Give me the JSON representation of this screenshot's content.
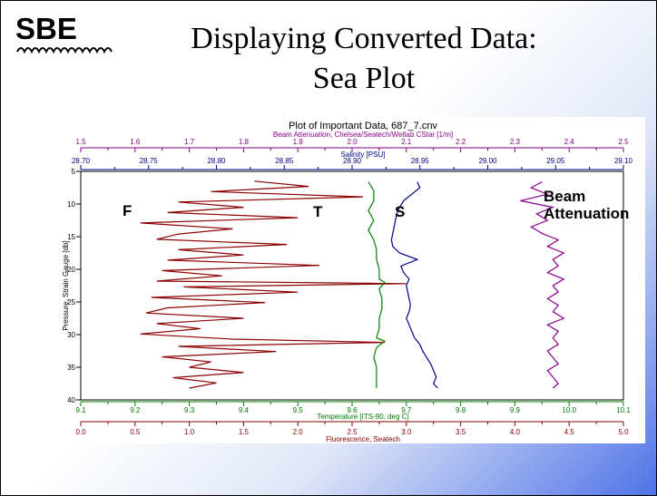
{
  "slide": {
    "logo_text": "SBE",
    "title_line1": "Displaying Converted Data:",
    "title_line2": "Sea Plot"
  },
  "colors": {
    "fluorescence": "#8b0000",
    "temperature": "#008000",
    "salinity": "#00008b",
    "beam_attenuation": "#8b008b"
  },
  "chart_data": {
    "type": "line",
    "title": "Plot of Important Data, 687_7.cnv",
    "overlay_labels": {
      "f": "F",
      "t": "T",
      "s": "S",
      "beam": "Beam Attenuation"
    },
    "y_axis": {
      "label": "Pressure, Strain Gauge [db]",
      "range": [
        5,
        40
      ],
      "reversed": true,
      "ticks": [
        "5",
        "10",
        "15",
        "20",
        "25",
        "30",
        "35",
        "40"
      ]
    },
    "top_axis_1": {
      "label": "Beam Attenuation, Chelsea/Seatech/Wetlab CStar [1/m]",
      "range": [
        1.5,
        2.5
      ],
      "ticks": [
        "1.5",
        "1.6",
        "1.7",
        "1.8",
        "1.9",
        "2.0",
        "2.1",
        "2.2",
        "2.3",
        "2.4",
        "2.5"
      ]
    },
    "top_axis_2": {
      "label": "Salinity [PSU]",
      "range": [
        28.7,
        29.1
      ],
      "ticks": [
        "28.70",
        "28.75",
        "28.80",
        "28.85",
        "28.90",
        "28.95",
        "29.00",
        "29.05",
        "29.10"
      ]
    },
    "bottom_axis_1": {
      "label": "Temperature [ITS-90, deg C]",
      "range": [
        9.1,
        10.1
      ],
      "ticks": [
        "9.1",
        "9.2",
        "9.3",
        "9.4",
        "9.5",
        "9.6",
        "9.7",
        "9.8",
        "9.9",
        "10.0",
        "10.1"
      ]
    },
    "bottom_axis_2": {
      "label": "Fluorescence, Seatech",
      "range": [
        0.0,
        5.0
      ],
      "ticks": [
        "0.0",
        "0.5",
        "1.0",
        "1.5",
        "2.0",
        "2.5",
        "3.0",
        "3.5",
        "4.0",
        "4.5",
        "5.0"
      ]
    },
    "series": [
      {
        "name": "F",
        "axis": "bottom_axis_2",
        "color": "#8b0000",
        "pressure": [
          6.5,
          7.3,
          8.1,
          8.9,
          9.7,
          10.5,
          11.3,
          12.1,
          12.9,
          13.8,
          14.6,
          15.4,
          16.2,
          17.0,
          17.8,
          18.6,
          19.4,
          20.2,
          21.0,
          21.8,
          22.2,
          22.7,
          23.5,
          24.3,
          25.1,
          25.9,
          26.7,
          27.5,
          28.3,
          29.1,
          29.9,
          30.7,
          31.2,
          31.8,
          32.6,
          33.4,
          34.2,
          35.0,
          35.8,
          36.6,
          37.4,
          38.2
        ],
        "values": [
          1.6,
          2.1,
          1.2,
          2.6,
          0.9,
          1.5,
          0.8,
          2.0,
          0.55,
          1.4,
          0.9,
          0.7,
          1.9,
          0.9,
          1.5,
          0.8,
          2.2,
          0.75,
          1.3,
          0.7,
          3.0,
          0.95,
          2.0,
          0.65,
          1.7,
          0.8,
          0.6,
          1.5,
          0.7,
          1.1,
          0.55,
          1.4,
          2.8,
          0.9,
          1.8,
          0.75,
          1.2,
          1.0,
          1.5,
          0.85,
          1.25,
          1.0
        ]
      },
      {
        "name": "T",
        "axis": "bottom_axis_1",
        "color": "#008000",
        "pressure": [
          6.6,
          8.0,
          9.5,
          11.0,
          12.5,
          14.0,
          15.5,
          17.0,
          18.5,
          20.0,
          21.5,
          22.0,
          23.0,
          24.5,
          26.0,
          27.5,
          29.0,
          30.5,
          31.0,
          32.0,
          33.5,
          35.0,
          36.5,
          38.2
        ],
        "values": [
          9.63,
          9.64,
          9.64,
          9.63,
          9.64,
          9.63,
          9.64,
          9.645,
          9.645,
          9.65,
          9.65,
          9.66,
          9.65,
          9.655,
          9.655,
          9.65,
          9.65,
          9.645,
          9.66,
          9.645,
          9.64,
          9.645,
          9.645,
          9.645
        ]
      },
      {
        "name": "S",
        "axis": "top_axis_2",
        "color": "#00008b",
        "pressure": [
          6.6,
          7.5,
          8.5,
          9.5,
          10.5,
          11.5,
          12.5,
          13.5,
          14.5,
          15.5,
          16.5,
          17.5,
          18.5,
          19.5,
          20.5,
          21.5,
          22.5,
          23.5,
          24.5,
          25.5,
          26.5,
          27.5,
          28.5,
          29.5,
          30.5,
          31.5,
          32.5,
          33.5,
          34.5,
          35.5,
          36.5,
          37.5,
          38.2
        ],
        "values": [
          28.948,
          28.95,
          28.944,
          28.938,
          28.935,
          28.933,
          28.932,
          28.931,
          28.93,
          28.929,
          28.93,
          28.935,
          28.948,
          28.936,
          28.938,
          28.942,
          28.94,
          28.941,
          28.942,
          28.943,
          28.942,
          28.94,
          28.942,
          28.944,
          28.946,
          28.95,
          28.952,
          28.955,
          28.958,
          28.96,
          28.962,
          28.96,
          28.963
        ]
      },
      {
        "name": "Beam Attenuation",
        "axis": "top_axis_1",
        "color": "#8b008b",
        "pressure": [
          6.6,
          7.5,
          8.5,
          9.5,
          10.5,
          11.5,
          12.5,
          13.5,
          14.5,
          15.5,
          16.5,
          17.5,
          18.5,
          19.5,
          20.5,
          21.5,
          22.5,
          23.5,
          24.5,
          25.5,
          26.5,
          27.5,
          28.5,
          29.5,
          30.5,
          31.5,
          32.5,
          33.5,
          34.5,
          35.5,
          36.5,
          37.5,
          38.2
        ],
        "values": [
          2.35,
          2.33,
          2.36,
          2.31,
          2.37,
          2.34,
          2.36,
          2.33,
          2.35,
          2.38,
          2.36,
          2.39,
          2.37,
          2.38,
          2.36,
          2.39,
          2.37,
          2.38,
          2.36,
          2.38,
          2.37,
          2.39,
          2.36,
          2.38,
          2.37,
          2.38,
          2.36,
          2.37,
          2.38,
          2.36,
          2.37,
          2.38,
          2.37
        ]
      }
    ]
  }
}
